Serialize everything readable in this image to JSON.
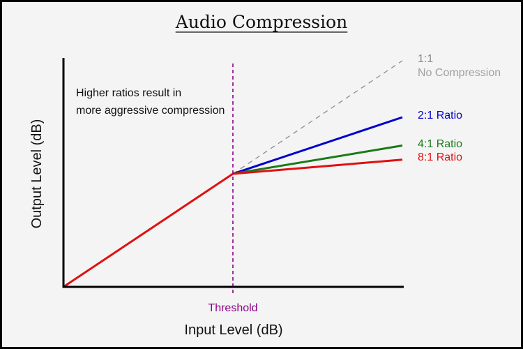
{
  "chart_data": {
    "type": "line",
    "title": "Audio Compression",
    "xlabel": "Input Level (dB)",
    "ylabel": "Output Level (dB)",
    "xlim": [
      0,
      100
    ],
    "ylim": [
      0,
      100
    ],
    "grid": false,
    "threshold": {
      "x": 50,
      "label": "Threshold",
      "color": "#8b008b"
    },
    "annotation": {
      "lines": [
        "Higher ratios result in",
        "more aggressive compression"
      ]
    },
    "series": [
      {
        "id": "s1",
        "name": "1:1",
        "sublabel": "No Compression",
        "color": "#8c8c8c",
        "dashed": true,
        "points": [
          [
            50,
            50
          ],
          [
            100,
            100
          ]
        ]
      },
      {
        "id": "s2",
        "name": "2:1 Ratio",
        "color": "#0000cc",
        "dashed": false,
        "points": [
          [
            50,
            50
          ],
          [
            100,
            75
          ]
        ]
      },
      {
        "id": "s4",
        "name": "4:1 Ratio",
        "color": "#1a7a1a",
        "dashed": false,
        "points": [
          [
            50,
            50
          ],
          [
            100,
            62.5
          ]
        ]
      },
      {
        "id": "s8",
        "name": "8:1 Ratio",
        "color": "#e01010",
        "dashed": false,
        "points": [
          [
            0,
            0
          ],
          [
            50,
            50
          ],
          [
            100,
            56.25
          ]
        ]
      }
    ]
  }
}
